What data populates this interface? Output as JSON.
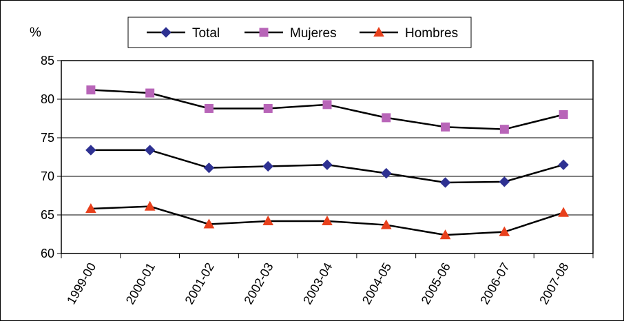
{
  "chart_data": {
    "type": "line",
    "title": "",
    "xlabel": "",
    "ylabel": "%",
    "ylim": [
      60,
      85
    ],
    "yticks": [
      60,
      65,
      70,
      75,
      80,
      85
    ],
    "grid": true,
    "legend_position": "top-center",
    "categories": [
      "1999-00",
      "2000-01",
      "2001-02",
      "2002-03",
      "2003-04",
      "2004-05",
      "2005-06",
      "2006-07",
      "2007-08"
    ],
    "series": [
      {
        "name": "Total",
        "marker": "diamond",
        "color": "#2E3192",
        "values": [
          73.4,
          73.4,
          71.1,
          71.3,
          71.5,
          70.4,
          69.2,
          69.3,
          71.5
        ]
      },
      {
        "name": "Mujeres",
        "marker": "square",
        "color": "#B865B8",
        "values": [
          81.2,
          80.8,
          78.8,
          78.8,
          79.3,
          77.6,
          76.4,
          76.1,
          78.0
        ]
      },
      {
        "name": "Hombres",
        "marker": "triangle",
        "color": "#E8401C",
        "values": [
          65.8,
          66.1,
          63.8,
          64.2,
          64.2,
          63.7,
          62.4,
          62.8,
          65.3
        ]
      }
    ]
  }
}
